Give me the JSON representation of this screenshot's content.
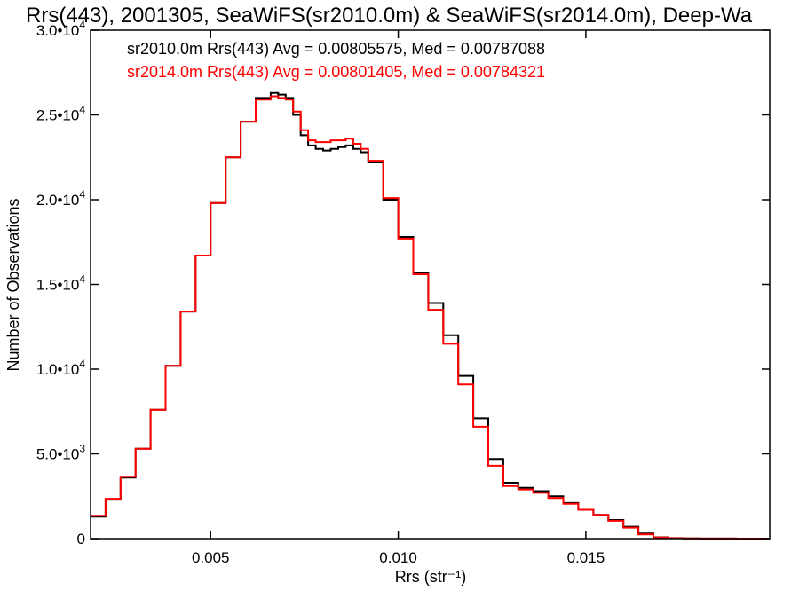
{
  "chart_data": {
    "type": "line",
    "title": "Rrs(443), 2001305, SeaWiFS(sr2010.0m) & SeaWiFS(sr2014.0m), Deep-Wa",
    "xlabel": "Rrs (str⁻¹)",
    "ylabel": "Number of Observations",
    "xlim": [
      0.0018,
      0.0199
    ],
    "ylim": [
      0,
      30000
    ],
    "x_ticks": [
      {
        "value": 0.005,
        "label": "0.005"
      },
      {
        "value": 0.01,
        "label": "0.010"
      },
      {
        "value": 0.015,
        "label": "0.015"
      }
    ],
    "y_ticks": [
      {
        "value": 0,
        "mantissa": "0",
        "exponent": ""
      },
      {
        "value": 5000,
        "mantissa": "5.0•10",
        "exponent": "3"
      },
      {
        "value": 10000,
        "mantissa": "1.0•10",
        "exponent": "4"
      },
      {
        "value": 15000,
        "mantissa": "1.5•10",
        "exponent": "4"
      },
      {
        "value": 20000,
        "mantissa": "2.0•10",
        "exponent": "4"
      },
      {
        "value": 25000,
        "mantissa": "2.5•10",
        "exponent": "4"
      },
      {
        "value": 30000,
        "mantissa": "3.0•10",
        "exponent": "4"
      }
    ],
    "grid": false,
    "legend_position": "top-left",
    "annotations": [
      {
        "text": "sr2010.0m Rrs(443) Avg = 0.00805575, Med = 0.00787088",
        "color": "#000000"
      },
      {
        "text": "sr2014.0m Rrs(443) Avg = 0.00801405, Med = 0.00784321",
        "color": "#ff0000"
      }
    ],
    "series": [
      {
        "color": "#000000",
        "x": [
          0.0018,
          0.0022,
          0.0026,
          0.003,
          0.0034,
          0.0038,
          0.0042,
          0.0046,
          0.005,
          0.0054,
          0.0058,
          0.0062,
          0.0066,
          0.0068,
          0.007,
          0.0072,
          0.0074,
          0.0076,
          0.0078,
          0.008,
          0.0082,
          0.0084,
          0.0086,
          0.0088,
          0.009,
          0.0092,
          0.0096,
          0.01,
          0.0104,
          0.0108,
          0.0112,
          0.0116,
          0.012,
          0.0124,
          0.0128,
          0.0132,
          0.0136,
          0.014,
          0.0144,
          0.0148,
          0.0152,
          0.0156,
          0.016,
          0.0164,
          0.0168,
          0.0172,
          0.0176,
          0.018,
          0.019,
          0.0199
        ],
        "y": [
          1300,
          2300,
          3600,
          5300,
          7600,
          10200,
          13400,
          16700,
          19800,
          22500,
          24600,
          26000,
          26300,
          26200,
          26000,
          25000,
          23800,
          23200,
          23000,
          22900,
          23000,
          23100,
          23200,
          23000,
          22800,
          22200,
          20000,
          17800,
          15700,
          13900,
          12000,
          9600,
          7100,
          4700,
          3300,
          3000,
          2800,
          2500,
          2100,
          1700,
          1400,
          1100,
          700,
          300,
          80,
          30,
          10,
          5,
          0,
          0
        ]
      },
      {
        "color": "#ff0000",
        "x": [
          0.0018,
          0.0022,
          0.0026,
          0.003,
          0.0034,
          0.0038,
          0.0042,
          0.0046,
          0.005,
          0.0054,
          0.0058,
          0.0062,
          0.0066,
          0.0068,
          0.007,
          0.0072,
          0.0074,
          0.0076,
          0.0078,
          0.008,
          0.0082,
          0.0084,
          0.0086,
          0.0088,
          0.009,
          0.0092,
          0.0096,
          0.01,
          0.0104,
          0.0108,
          0.0112,
          0.0116,
          0.012,
          0.0124,
          0.0128,
          0.0132,
          0.0136,
          0.014,
          0.0144,
          0.0148,
          0.0152,
          0.0156,
          0.016,
          0.0164,
          0.0168,
          0.0172,
          0.0176,
          0.018,
          0.019,
          0.0199
        ],
        "y": [
          1350,
          2350,
          3650,
          5300,
          7600,
          10200,
          13400,
          16700,
          19800,
          22500,
          24600,
          25900,
          26100,
          26000,
          25900,
          25200,
          24100,
          23500,
          23400,
          23400,
          23500,
          23500,
          23600,
          23300,
          23000,
          22300,
          20100,
          17700,
          15600,
          13500,
          11500,
          9100,
          6600,
          4300,
          3100,
          2900,
          2700,
          2400,
          2050,
          1700,
          1400,
          1050,
          650,
          250,
          70,
          25,
          10,
          5,
          0,
          0
        ]
      }
    ]
  }
}
